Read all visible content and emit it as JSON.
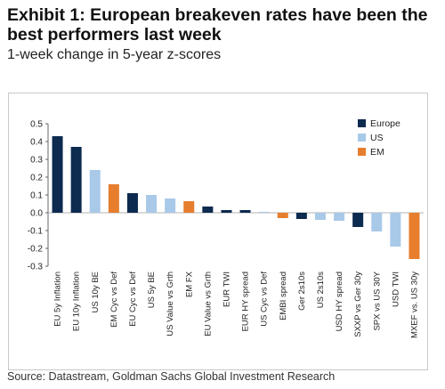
{
  "title": "Exhibit 1: European breakeven rates have been the best performers last week",
  "subtitle": "1-week change in 5-year z-scores",
  "source": "Source: Datastream, Goldman Sachs Global Investment Research",
  "colors": {
    "Europe": "#0d2a4f",
    "US": "#a9c9e8",
    "EM": "#e67e2e"
  },
  "chart_data": {
    "type": "bar",
    "ylim": [
      -0.3,
      0.5
    ],
    "yticks": [
      "0.5",
      "0.4",
      "0.3",
      "0.2",
      "0.1",
      "0.0",
      "-0.1",
      "-0.2",
      "-0.3"
    ],
    "ytick_values": [
      0.5,
      0.4,
      0.3,
      0.2,
      0.1,
      0.0,
      -0.1,
      -0.2,
      -0.3
    ],
    "legend": [
      "Europe",
      "US",
      "EM"
    ],
    "legend_position": "top-right",
    "categories": [
      "EU 5y Inflation",
      "EU 10y Inflation",
      "US 10y BE",
      "EM Cyc vs Def",
      "EU Cyc vs Def",
      "US 5y BE",
      "US Value vs Grth",
      "EM FX",
      "EU Value vs Grth",
      "EUR TWI",
      "EUR HY spread",
      "US Cyc vs Def",
      "EMBI spread",
      "Ger 2s10s",
      "US 2s10s",
      "USD HY spread",
      "SXXP vs Ger 30y",
      "SPX vs US 30Y",
      "USD TWI",
      "MXEF vs. US 30y"
    ],
    "values": [
      0.43,
      0.37,
      0.24,
      0.16,
      0.11,
      0.1,
      0.08,
      0.065,
      0.035,
      0.015,
      0.015,
      0.005,
      -0.03,
      -0.035,
      -0.04,
      -0.045,
      -0.08,
      -0.105,
      -0.19,
      -0.26
    ],
    "groups": [
      "Europe",
      "Europe",
      "US",
      "EM",
      "Europe",
      "US",
      "US",
      "EM",
      "Europe",
      "Europe",
      "Europe",
      "US",
      "EM",
      "Europe",
      "US",
      "US",
      "Europe",
      "US",
      "US",
      "EM"
    ]
  }
}
